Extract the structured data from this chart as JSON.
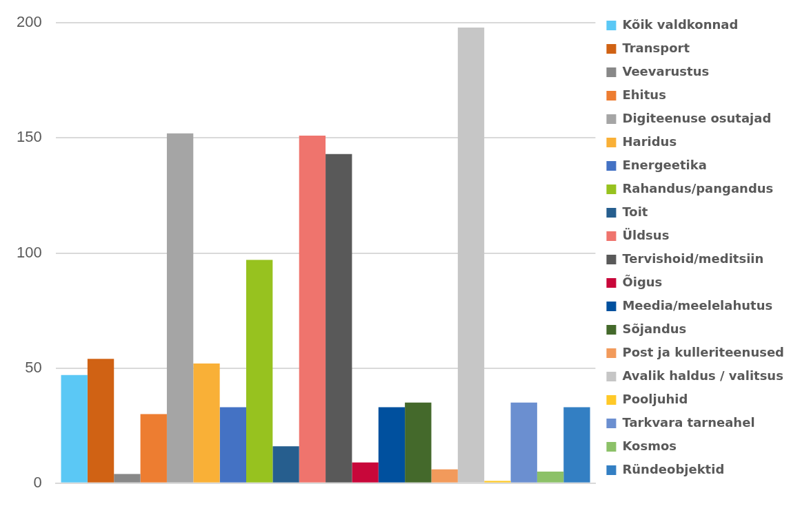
{
  "chart_data": {
    "type": "bar",
    "categories": [
      null
    ],
    "series": [
      {
        "name": "Kõik valdkonnad",
        "color": "#5bc8f5",
        "values": [
          47
        ]
      },
      {
        "name": "Transport",
        "color": "#d06214",
        "values": [
          54
        ]
      },
      {
        "name": "Veevarustus",
        "color": "#888888",
        "values": [
          4
        ]
      },
      {
        "name": "Ehitus",
        "color": "#ed7d31",
        "values": [
          30
        ]
      },
      {
        "name": "Digiteenuse osutajad",
        "color": "#a5a5a5",
        "values": [
          152
        ]
      },
      {
        "name": "Haridus",
        "color": "#f9b037",
        "values": [
          52
        ]
      },
      {
        "name": "Energeetika",
        "color": "#4472c4",
        "values": [
          33
        ]
      },
      {
        "name": "Rahandus/pangandus",
        "color": "#97c21f",
        "values": [
          97
        ]
      },
      {
        "name": "Toit",
        "color": "#265e8e",
        "values": [
          16
        ]
      },
      {
        "name": "Üldsus",
        "color": "#ef746d",
        "values": [
          151
        ]
      },
      {
        "name": "Tervishoid/meditsiin",
        "color": "#595959",
        "values": [
          143
        ]
      },
      {
        "name": "Õigus",
        "color": "#c8073a",
        "values": [
          9
        ]
      },
      {
        "name": "Meedia/meelelahutus",
        "color": "#00509e",
        "values": [
          33
        ]
      },
      {
        "name": "Sõjandus",
        "color": "#44692b",
        "values": [
          35
        ]
      },
      {
        "name": "Post ja kulleriteenused",
        "color": "#f29a5b",
        "values": [
          6
        ]
      },
      {
        "name": "Avalik haldus / valitsus",
        "color": "#c6c6c6",
        "values": [
          198
        ]
      },
      {
        "name": "Pooljuhid",
        "color": "#ffc928",
        "values": [
          1
        ]
      },
      {
        "name": "Tarkvara tarneahel",
        "color": "#6b8fd0",
        "values": [
          35
        ]
      },
      {
        "name": "Kosmos",
        "color": "#8cc168",
        "values": [
          5
        ]
      },
      {
        "name": "Ründeobjektid",
        "color": "#337fc3",
        "values": [
          33
        ]
      }
    ],
    "ylim": [
      0,
      200
    ],
    "yticks": [
      0,
      50,
      100,
      150,
      200
    ],
    "grid": "y",
    "legend": "right",
    "tick_labels": "y"
  }
}
